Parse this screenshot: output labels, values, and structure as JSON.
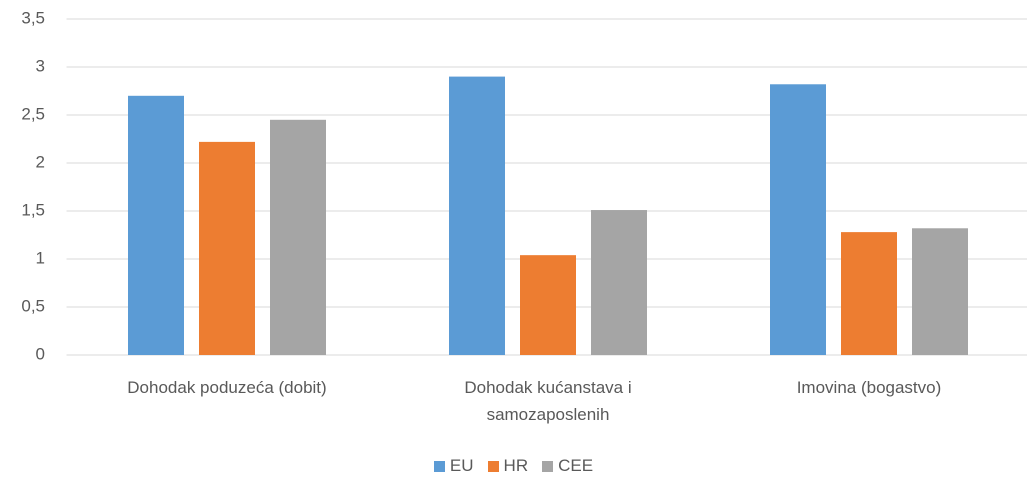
{
  "chart_data": {
    "type": "bar",
    "categories": [
      "Dohodak poduzeća (dobit)",
      "Dohodak kućanstava i samozaposlenih",
      "Imovina (bogastvo)"
    ],
    "series": [
      {
        "name": "EU",
        "color": "#5b9bd5",
        "values": [
          2.7,
          2.9,
          2.82
        ]
      },
      {
        "name": "HR",
        "color": "#ed7d31",
        "values": [
          2.22,
          1.04,
          1.28
        ]
      },
      {
        "name": "CEE",
        "color": "#a5a5a5",
        "values": [
          2.45,
          1.51,
          1.32
        ]
      }
    ],
    "ylim": [
      0,
      3.5
    ],
    "yticks": [
      0,
      {
        "value": 0.5,
        "label": "0,5"
      },
      1,
      {
        "value": 1.5,
        "label": "1,5"
      },
      2,
      {
        "value": 2.5,
        "label": "2,5"
      },
      3,
      {
        "value": 3.5,
        "label": "3,5"
      }
    ],
    "grid": true,
    "legend": "bottom"
  }
}
